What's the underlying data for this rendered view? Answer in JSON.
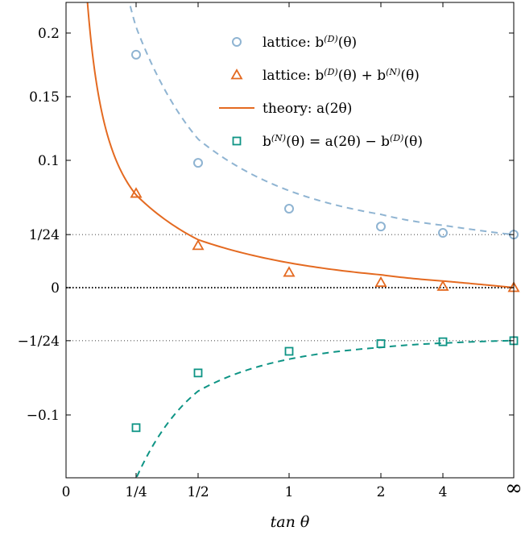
{
  "chart_data": {
    "type": "line",
    "xlabel": "tan θ",
    "ylabel": "",
    "title": "",
    "x_scale": "custom (tan θ mapped to evenly spaced positions)",
    "xlim": [
      0,
      "∞"
    ],
    "ylim": [
      -0.155,
      0.22
    ],
    "x_ticks": [
      "0",
      "1/4",
      "1/2",
      "1",
      "2",
      "4",
      "∞"
    ],
    "y_ticks": [
      "0.2",
      "0.15",
      "0.1",
      "1/24",
      "0",
      "−1/24",
      "−0.1"
    ],
    "y_tick_values": [
      0.2,
      0.15,
      0.1,
      0.04167,
      0,
      -0.04167,
      -0.1
    ],
    "reference_lines": [
      {
        "y": 0.04167,
        "label": "1/24",
        "style": "dotted"
      },
      {
        "y": 0,
        "label": "0",
        "style": "dotted-bold"
      },
      {
        "y": -0.04167,
        "label": "−1/24",
        "style": "dotted"
      }
    ],
    "legend_position": "top-right",
    "series": [
      {
        "name": "lattice: b(D)(θ)",
        "marker": "circle",
        "color": "#8fb4d2",
        "style": "markers + dashed curve",
        "points": [
          {
            "x": "1/4",
            "y": 0.183
          },
          {
            "x": "1/2",
            "y": 0.098
          },
          {
            "x": "1",
            "y": 0.062
          },
          {
            "x": "2",
            "y": 0.048
          },
          {
            "x": "4",
            "y": 0.043
          },
          {
            "x": "∞",
            "y": 0.0417
          }
        ]
      },
      {
        "name": "lattice: b(D)(θ) + b(N)(θ)",
        "marker": "triangle",
        "color": "#e46a21",
        "style": "markers",
        "points": [
          {
            "x": "1/4",
            "y": 0.074
          },
          {
            "x": "1/2",
            "y": 0.033
          },
          {
            "x": "1",
            "y": 0.012
          },
          {
            "x": "2",
            "y": 0.004
          },
          {
            "x": "4",
            "y": 0.001
          },
          {
            "x": "∞",
            "y": 0.0
          }
        ]
      },
      {
        "name": "theory: a(2θ)",
        "marker": "none",
        "color": "#e46a21",
        "style": "solid curve"
      },
      {
        "name": "b(N)(θ) = a(2θ) − b(D)(θ)",
        "marker": "square",
        "color": "#0e9485",
        "style": "markers + dashed curve",
        "points": [
          {
            "x": "1/4",
            "y": -0.11
          },
          {
            "x": "1/2",
            "y": -0.067
          },
          {
            "x": "1",
            "y": -0.05
          },
          {
            "x": "2",
            "y": -0.044
          },
          {
            "x": "4",
            "y": -0.0425
          },
          {
            "x": "∞",
            "y": -0.0417
          }
        ]
      }
    ]
  },
  "legend": [
    {
      "prefix": "lattice: ",
      "expr": "b(D)(θ)"
    },
    {
      "prefix": "lattice: ",
      "expr": "b(D)(θ) + b(N)(θ)"
    },
    {
      "prefix": "theory: ",
      "expr": "a(2θ)"
    },
    {
      "prefix": "",
      "expr": "b(N)(θ) = a(2θ) − b(D)(θ)"
    }
  ],
  "colors": {
    "dirichlet": "#8fb4d2",
    "theory": "#e46a21",
    "neumann": "#0e9485"
  }
}
